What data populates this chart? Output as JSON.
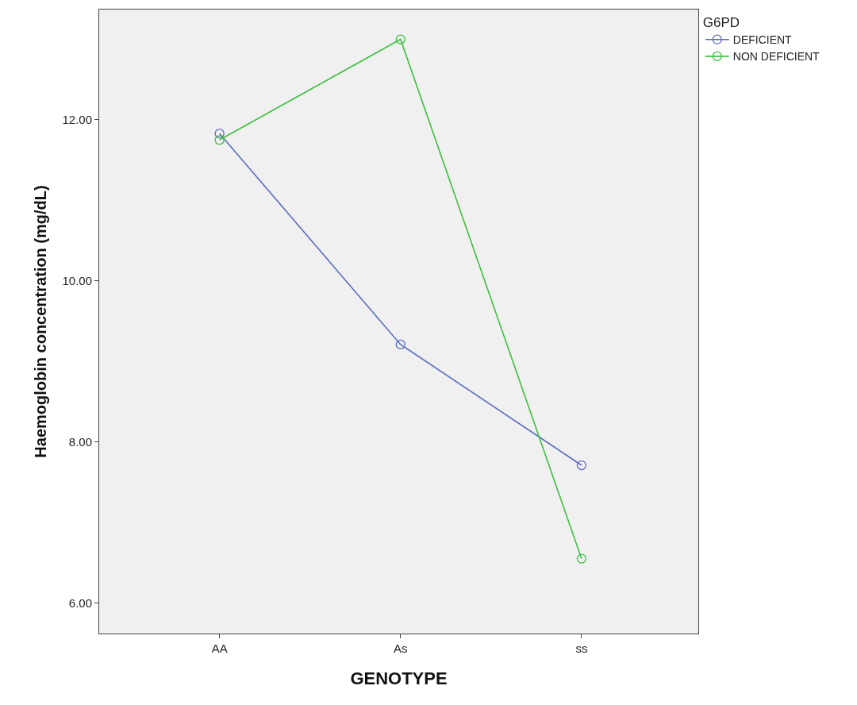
{
  "chart_data": {
    "type": "line",
    "xlabel": "GENOTYPE",
    "ylabel": "Haemoglobin concentration (mg/dL)",
    "legend_title": "G6PD",
    "categories": [
      "AA",
      "As",
      "ss"
    ],
    "series": [
      {
        "name": "DEFICIENT",
        "color": "#5a6bbf",
        "values": [
          11.83,
          9.21,
          7.71
        ]
      },
      {
        "name": "NON DEFICIENT",
        "color": "#3fbf3f",
        "values": [
          11.75,
          13.0,
          6.55
        ]
      }
    ],
    "ylim": [
      5.62,
      13.37
    ],
    "yticks": [
      {
        "value": 6,
        "label": "6.00"
      },
      {
        "value": 8,
        "label": "8.00"
      },
      {
        "value": 10,
        "label": "10.00"
      },
      {
        "value": 12,
        "label": "12.00"
      }
    ],
    "grid": false,
    "legend": "top right",
    "marker": "circle",
    "line_style": "solid"
  }
}
